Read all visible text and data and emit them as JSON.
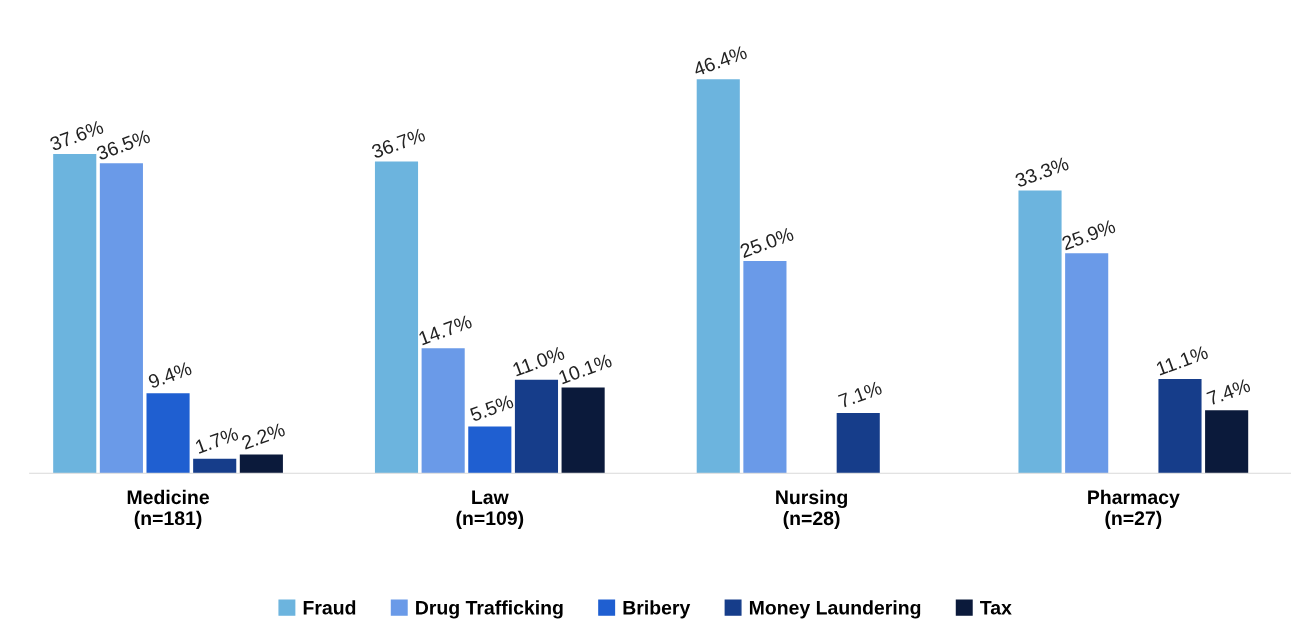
{
  "chart_data": {
    "type": "bar",
    "categories": [
      "Medicine\n(n=181)",
      "Law\n(n=109)",
      "Nursing\n(n=28)",
      "Pharmacy\n(n=27)"
    ],
    "series": [
      {
        "name": "Fraud",
        "color": "#6cb4de",
        "values": [
          37.6,
          36.7,
          46.4,
          33.3
        ],
        "value_labels": [
          "37.6%",
          "36.7%",
          "46.4%",
          "33.3%"
        ]
      },
      {
        "name": "Drug Trafficking",
        "color": "#6a9ae8",
        "values": [
          36.5,
          14.7,
          25.0,
          25.9
        ],
        "value_labels": [
          "36.5%",
          "14.7%",
          "25.0%",
          "25.9%"
        ]
      },
      {
        "name": "Bribery",
        "color": "#1f5fd1",
        "values": [
          9.4,
          5.5,
          null,
          null
        ],
        "value_labels": [
          "9.4%",
          "5.5%",
          null,
          null
        ]
      },
      {
        "name": "Money Laundering",
        "color": "#163d8a",
        "values": [
          1.7,
          11.0,
          7.1,
          11.1
        ],
        "value_labels": [
          "1.7%",
          "11.0%",
          "7.1%",
          "11.1%"
        ]
      },
      {
        "name": "Tax",
        "color": "#0b1a3b",
        "values": [
          2.2,
          10.1,
          null,
          7.4
        ],
        "value_labels": [
          "2.2%",
          "10.1%",
          null,
          "7.4%"
        ]
      }
    ],
    "legend": "bottom"
  }
}
